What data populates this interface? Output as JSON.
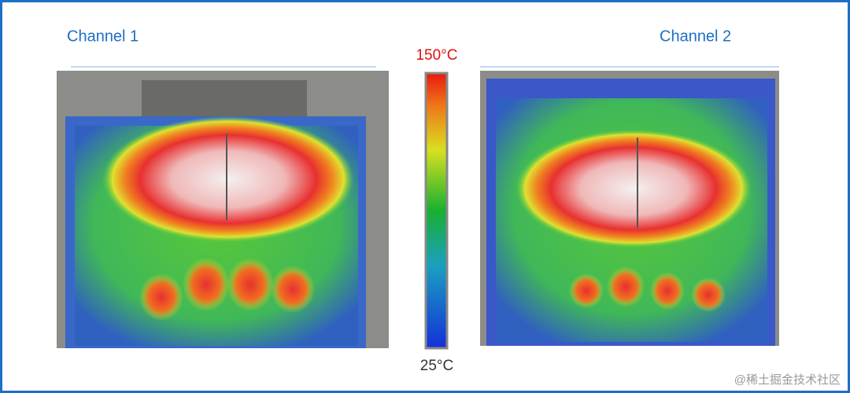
{
  "panels": [
    {
      "title": "Channel 1"
    },
    {
      "title": "Channel 2"
    }
  ],
  "colorbar": {
    "max_label": "150°C",
    "min_label": "25°C"
  },
  "watermark": "@稀土掘金技术社区"
}
